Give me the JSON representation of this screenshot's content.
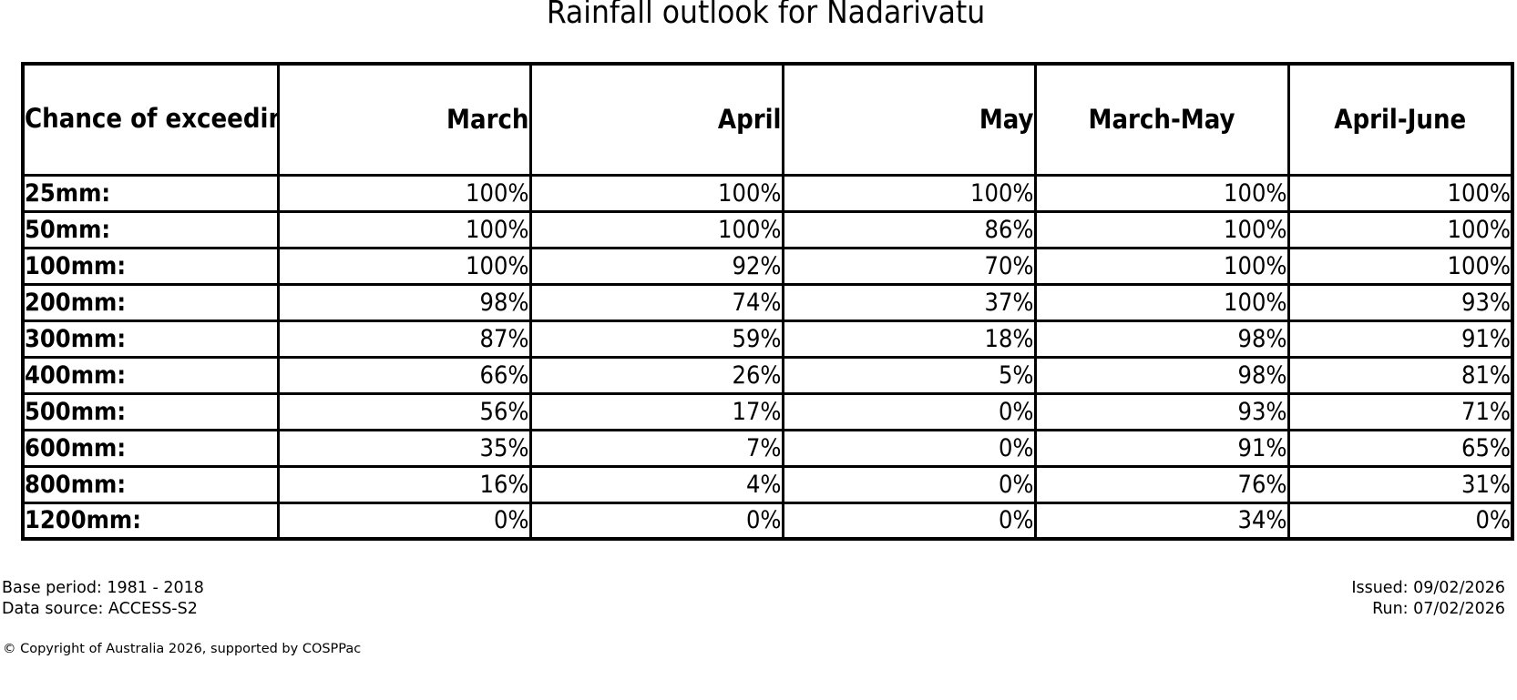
{
  "title": "Rainfall outlook for Nadarivatu",
  "table": {
    "corner_header": "Chance of\nexceeding\na threshold:",
    "columns": [
      "March",
      "April",
      "May",
      "March-May",
      "April-June"
    ],
    "rows": [
      {
        "threshold": "25mm:",
        "values": [
          "100%",
          "100%",
          "100%",
          "100%",
          "100%"
        ]
      },
      {
        "threshold": "50mm:",
        "values": [
          "100%",
          "100%",
          "86%",
          "100%",
          "100%"
        ]
      },
      {
        "threshold": "100mm:",
        "values": [
          "100%",
          "92%",
          "70%",
          "100%",
          "100%"
        ]
      },
      {
        "threshold": "200mm:",
        "values": [
          "98%",
          "74%",
          "37%",
          "100%",
          "93%"
        ]
      },
      {
        "threshold": "300mm:",
        "values": [
          "87%",
          "59%",
          "18%",
          "98%",
          "91%"
        ]
      },
      {
        "threshold": "400mm:",
        "values": [
          "66%",
          "26%",
          "5%",
          "98%",
          "81%"
        ]
      },
      {
        "threshold": "500mm:",
        "values": [
          "56%",
          "17%",
          "0%",
          "93%",
          "71%"
        ]
      },
      {
        "threshold": "600mm:",
        "values": [
          "35%",
          "7%",
          "0%",
          "91%",
          "65%"
        ]
      },
      {
        "threshold": "800mm:",
        "values": [
          "16%",
          "4%",
          "0%",
          "76%",
          "31%"
        ]
      },
      {
        "threshold": "1200mm:",
        "values": [
          "0%",
          "0%",
          "0%",
          "34%",
          "0%"
        ]
      }
    ]
  },
  "footer": {
    "base_period": "Base period: 1981 - 2018",
    "data_source": "Data source: ACCESS-S2",
    "issued": "Issued: 09/02/2026",
    "run": "Run: 07/02/2026",
    "copyright": "© Copyright of Australia 2026, supported by COSPPac"
  },
  "colors": {
    "text": "#000000",
    "border": "#000000",
    "background": "#ffffff"
  },
  "chart_data": {
    "type": "table",
    "title": "Rainfall outlook for Nadarivatu",
    "row_header_label": "Chance of exceeding a threshold:",
    "columns": [
      "March",
      "April",
      "May",
      "March-May",
      "April-June"
    ],
    "thresholds_mm": [
      25,
      50,
      100,
      200,
      300,
      400,
      500,
      600,
      800,
      1200
    ],
    "unit": "%",
    "series": [
      {
        "name": "March",
        "values": [
          100,
          100,
          100,
          98,
          87,
          66,
          56,
          35,
          16,
          0
        ]
      },
      {
        "name": "April",
        "values": [
          100,
          100,
          92,
          74,
          59,
          26,
          17,
          7,
          4,
          0
        ]
      },
      {
        "name": "May",
        "values": [
          100,
          86,
          70,
          37,
          18,
          5,
          0,
          0,
          0,
          0
        ]
      },
      {
        "name": "March-May",
        "values": [
          100,
          100,
          100,
          100,
          98,
          98,
          93,
          91,
          76,
          34
        ]
      },
      {
        "name": "April-June",
        "values": [
          100,
          100,
          100,
          93,
          91,
          81,
          71,
          65,
          31,
          0
        ]
      }
    ]
  }
}
